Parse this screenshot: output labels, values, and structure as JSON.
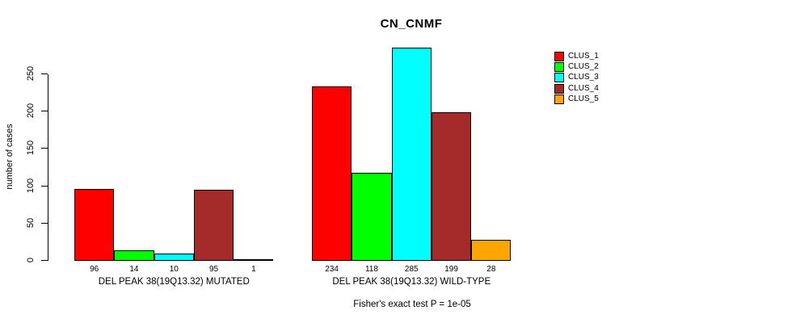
{
  "title": "CN_CNMF",
  "footnote": "Fisher's exact test P = 1e-05",
  "chart_data": {
    "type": "bar",
    "title": "CN_CNMF",
    "xlabel": "",
    "ylabel": "number of cases",
    "ylim": [
      0,
      250
    ],
    "y_ticks": [
      0,
      50,
      100,
      150,
      200,
      250
    ],
    "grid": false,
    "legend_position": "right",
    "categories": [
      "DEL PEAK 38(19Q13.32) MUTATED",
      "DEL PEAK 38(19Q13.32) WILD-TYPE"
    ],
    "series": [
      {
        "name": "CLUS_1",
        "color": "#FF0000",
        "values": [
          96,
          234
        ]
      },
      {
        "name": "CLUS_2",
        "color": "#00FF00",
        "values": [
          14,
          118
        ]
      },
      {
        "name": "CLUS_3",
        "color": "#00FFFF",
        "values": [
          10,
          285
        ]
      },
      {
        "name": "CLUS_4",
        "color": "#A52A2A",
        "values": [
          95,
          199
        ]
      },
      {
        "name": "CLUS_5",
        "color": "#FFA500",
        "values": [
          1,
          28
        ]
      }
    ],
    "bar_value_labels": [
      [
        96,
        14,
        10,
        95,
        1
      ],
      [
        234,
        118,
        285,
        199,
        28
      ]
    ],
    "annotation": "Fisher's exact test P = 1e-05"
  }
}
